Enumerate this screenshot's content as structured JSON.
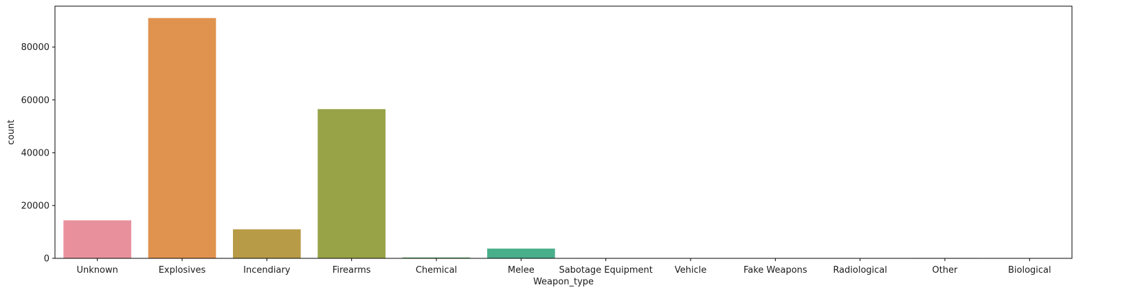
{
  "chart_data": {
    "type": "bar",
    "title": "",
    "xlabel": "Weapon_type",
    "ylabel": "count",
    "categories": [
      "Unknown",
      "Explosives",
      "Incendiary",
      "Firearms",
      "Chemical",
      "Melee",
      "Sabotage Equipment",
      "Vehicle",
      "Fake Weapons",
      "Radiological",
      "Other",
      "Biological"
    ],
    "values": [
      14400,
      91000,
      11000,
      56500,
      320,
      3700,
      140,
      130,
      30,
      14,
      150,
      35
    ],
    "colors": [
      "#e8919c",
      "#e0924f",
      "#b89b47",
      "#97a346",
      "#55ae5a",
      "#49ae8a",
      "#4aa9a2",
      "#4ba4b8",
      "#5a9fd4",
      "#9b8fe0",
      "#db79d3",
      "#e683ba"
    ],
    "ylim": [
      0,
      95500
    ],
    "yticks": [
      0,
      20000,
      40000,
      60000,
      80000
    ],
    "ytick_labels": [
      "0",
      "20000",
      "40000",
      "60000",
      "80000"
    ],
    "grid": false,
    "legend": "none"
  }
}
